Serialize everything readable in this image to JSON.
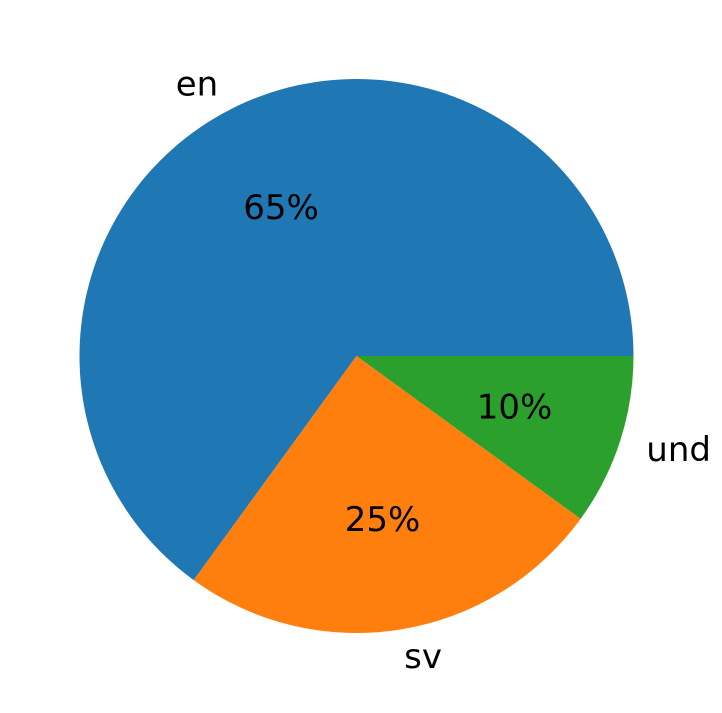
{
  "chart_data": {
    "type": "pie",
    "title": "",
    "categories": [
      "en",
      "sv",
      "und"
    ],
    "values": [
      65,
      25,
      10
    ],
    "value_labels": [
      "65%",
      "25%",
      "10%"
    ],
    "colors": [
      "#1f77b4",
      "#ff7f0e",
      "#2ca02c"
    ],
    "start_angle_deg": 0,
    "direction": "counterclockwise",
    "legend": "none"
  }
}
